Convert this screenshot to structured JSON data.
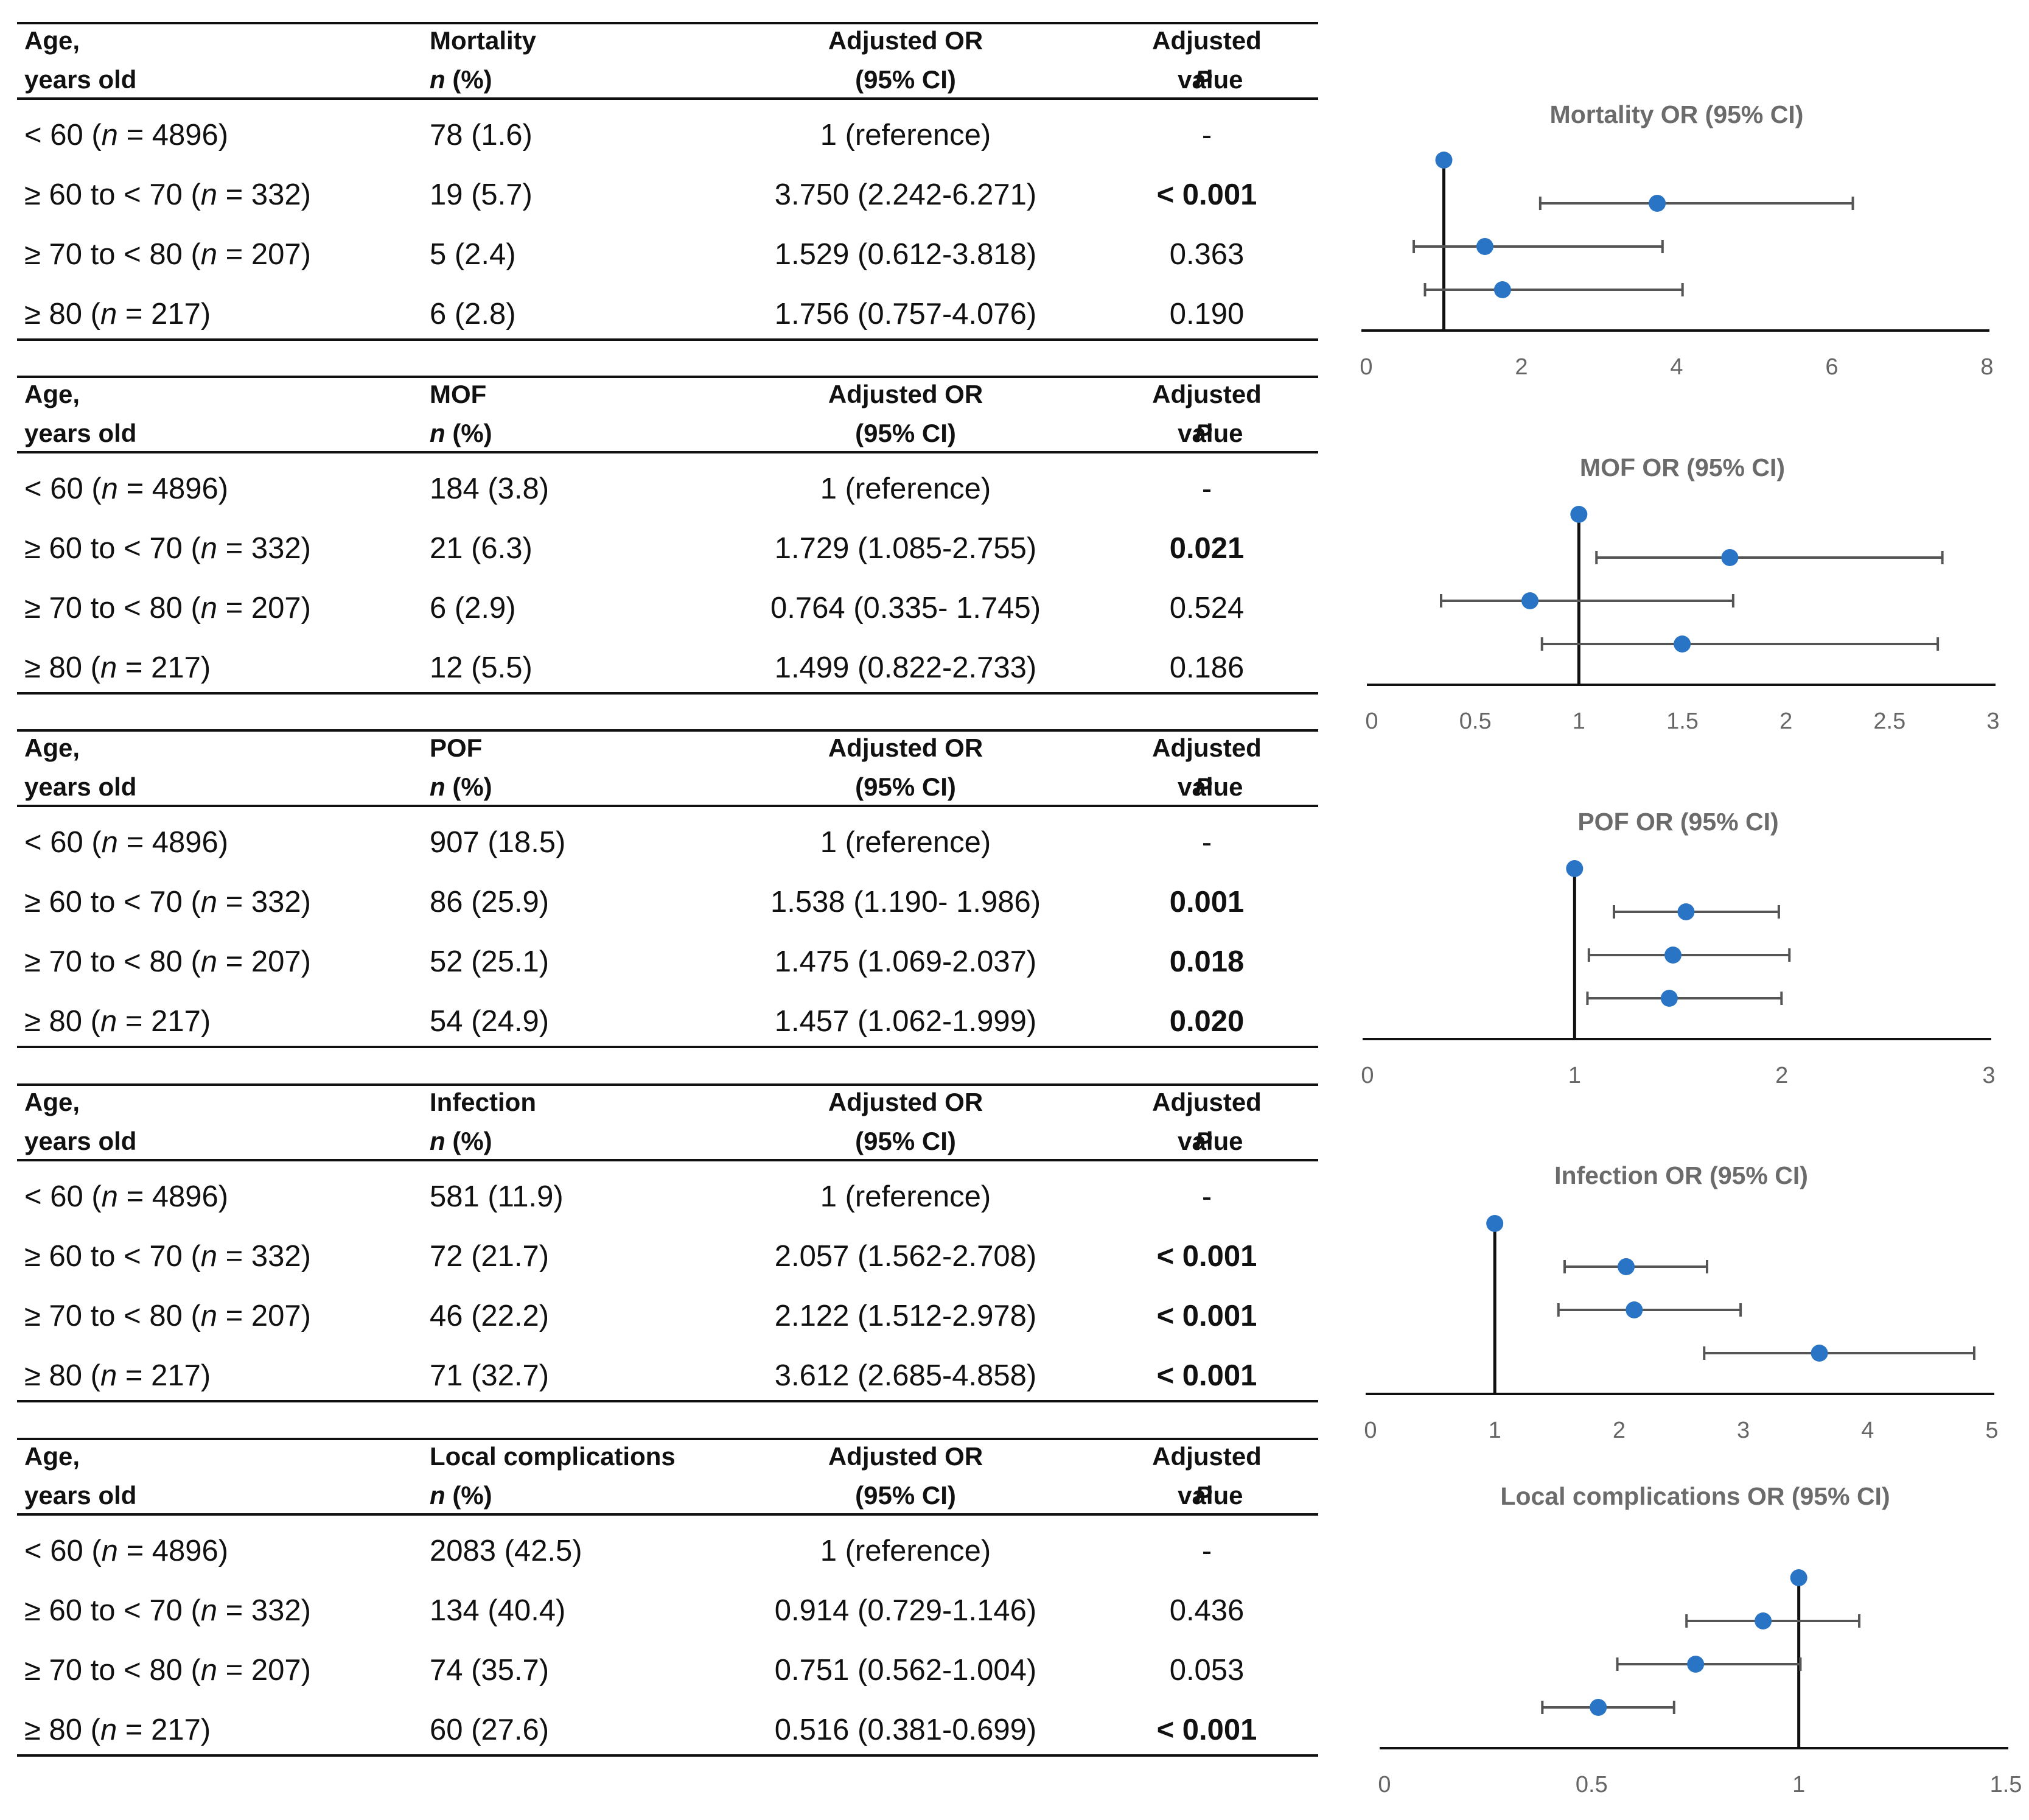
{
  "header": {
    "age_line1": "Age,",
    "age_line2": "years old",
    "n_pct_line": "(%)",
    "n_symbol": "n",
    "or_line1": "Adjusted OR",
    "or_line2": "(95% CI)",
    "p_line1": "Adjusted",
    "p_symbol": "P",
    "p_line2": "value"
  },
  "panels": [
    {
      "outcome": "Mortality",
      "rows": [
        {
          "age": "< 60 (",
          "n": "= 4896)",
          "count": "78 (1.6)",
          "or": "1 (reference)",
          "p": "-",
          "sig": false
        },
        {
          "age": "≥ 60 to < 70 (",
          "n": "= 332)",
          "count": "19 (5.7)",
          "or": "3.750 (2.242-6.271)",
          "p": "< 0.001",
          "sig": true
        },
        {
          "age": "≥ 70 to < 80 (",
          "n": "= 207)",
          "count": "5 (2.4)",
          "or": "1.529 (0.612-3.818)",
          "p": "0.363",
          "sig": false
        },
        {
          "age": "≥ 80 (",
          "n": "= 217)",
          "count": "6 (2.8)",
          "or": "1.756 (0.757-4.076)",
          "p": "0.190",
          "sig": false
        }
      ]
    },
    {
      "outcome": "MOF",
      "rows": [
        {
          "age": "< 60 (",
          "n": "= 4896)",
          "count": "184 (3.8)",
          "or": "1 (reference)",
          "p": "-",
          "sig": false
        },
        {
          "age": "≥ 60 to < 70 (",
          "n": "= 332)",
          "count": "21 (6.3)",
          "or": "1.729 (1.085-2.755)",
          "p": "0.021",
          "sig": true
        },
        {
          "age": "≥ 70 to < 80 (",
          "n": "= 207)",
          "count": "6 (2.9)",
          "or": "0.764 (0.335- 1.745)",
          "p": "0.524",
          "sig": false
        },
        {
          "age": "≥ 80 (",
          "n": "= 217)",
          "count": "12 (5.5)",
          "or": "1.499 (0.822-2.733)",
          "p": "0.186",
          "sig": false
        }
      ]
    },
    {
      "outcome": "POF",
      "rows": [
        {
          "age": "< 60 (",
          "n": "= 4896)",
          "count": "907 (18.5)",
          "or": "1 (reference)",
          "p": "-",
          "sig": false
        },
        {
          "age": "≥ 60 to < 70 (",
          "n": "= 332)",
          "count": "86 (25.9)",
          "or": "1.538 (1.190- 1.986)",
          "p": "0.001",
          "sig": true
        },
        {
          "age": "≥ 70 to < 80 (",
          "n": "= 207)",
          "count": "52 (25.1)",
          "or": "1.475 (1.069-2.037)",
          "p": "0.018",
          "sig": true
        },
        {
          "age": "≥ 80 (",
          "n": "= 217)",
          "count": "54 (24.9)",
          "or": "1.457 (1.062-1.999)",
          "p": "0.020",
          "sig": true
        }
      ]
    },
    {
      "outcome": "Infection",
      "rows": [
        {
          "age": "< 60 (",
          "n": "= 4896)",
          "count": "581 (11.9)",
          "or": "1 (reference)",
          "p": "-",
          "sig": false
        },
        {
          "age": "≥ 60 to < 70 (",
          "n": "= 332)",
          "count": "72 (21.7)",
          "or": "2.057 (1.562-2.708)",
          "p": "< 0.001",
          "sig": true
        },
        {
          "age": "≥ 70 to < 80 (",
          "n": "= 207)",
          "count": "46 (22.2)",
          "or": "2.122 (1.512-2.978)",
          "p": "< 0.001",
          "sig": true
        },
        {
          "age": "≥ 80 (",
          "n": "= 217)",
          "count": "71 (32.7)",
          "or": "3.612 (2.685-4.858)",
          "p": "< 0.001",
          "sig": true
        }
      ]
    },
    {
      "outcome": "Local complications",
      "rows": [
        {
          "age": "< 60 (",
          "n": "= 4896)",
          "count": "2083 (42.5)",
          "or": "1 (reference)",
          "p": "-",
          "sig": false
        },
        {
          "age": "≥ 60 to < 70 (",
          "n": "= 332)",
          "count": "134 (40.4)",
          "or": "0.914 (0.729-1.146)",
          "p": "0.436",
          "sig": false
        },
        {
          "age": "≥ 70 to < 80 (",
          "n": "= 207)",
          "count": "74 (35.7)",
          "or": "0.751 (0.562-1.004)",
          "p": "0.053",
          "sig": false
        },
        {
          "age": "≥ 80 (",
          "n": "= 217)",
          "count": "60 (27.6)",
          "or": "0.516 (0.381-0.699)",
          "p": "< 0.001",
          "sig": true
        }
      ]
    }
  ],
  "colors": {
    "point": "#2a74c5",
    "whisker": "#555555",
    "axis": "#111111",
    "title": "#6b6b6b",
    "tick": "#666666"
  },
  "chart_data": [
    {
      "type": "scatter",
      "title": "Mortality OR (95% CI)",
      "xlim": [
        0,
        8
      ],
      "xticks": [
        "0",
        "2",
        "4",
        "6",
        "8"
      ],
      "ref_line": 1,
      "points": [
        {
          "or": 1,
          "lo": 1,
          "hi": 1
        },
        {
          "or": 3.75,
          "lo": 2.242,
          "hi": 6.271
        },
        {
          "or": 1.529,
          "lo": 0.612,
          "hi": 3.818
        },
        {
          "or": 1.756,
          "lo": 0.757,
          "hi": 4.076
        }
      ]
    },
    {
      "type": "scatter",
      "title": "MOF OR (95% CI)",
      "xlim": [
        0,
        3
      ],
      "xticks": [
        "0",
        "0.5",
        "1",
        "1.5",
        "2",
        "2.5",
        "3"
      ],
      "ref_line": 1,
      "points": [
        {
          "or": 1,
          "lo": 1,
          "hi": 1
        },
        {
          "or": 1.729,
          "lo": 1.085,
          "hi": 2.755
        },
        {
          "or": 0.764,
          "lo": 0.335,
          "hi": 1.745
        },
        {
          "or": 1.499,
          "lo": 0.822,
          "hi": 2.733
        }
      ]
    },
    {
      "type": "scatter",
      "title": "POF OR (95% CI)",
      "xlim": [
        0,
        3
      ],
      "xticks": [
        "0",
        "1",
        "2",
        "3"
      ],
      "ref_line": 1,
      "points": [
        {
          "or": 1,
          "lo": 1,
          "hi": 1
        },
        {
          "or": 1.538,
          "lo": 1.19,
          "hi": 1.986
        },
        {
          "or": 1.475,
          "lo": 1.069,
          "hi": 2.037
        },
        {
          "or": 1.457,
          "lo": 1.062,
          "hi": 1.999
        }
      ]
    },
    {
      "type": "scatter",
      "title": "Infection OR (95% CI)",
      "xlim": [
        0,
        5
      ],
      "xticks": [
        "0",
        "1",
        "2",
        "3",
        "4",
        "5"
      ],
      "ref_line": 1,
      "points": [
        {
          "or": 1,
          "lo": 1,
          "hi": 1
        },
        {
          "or": 2.057,
          "lo": 1.562,
          "hi": 2.708
        },
        {
          "or": 2.122,
          "lo": 1.512,
          "hi": 2.978
        },
        {
          "or": 3.612,
          "lo": 2.685,
          "hi": 4.858
        }
      ]
    },
    {
      "type": "scatter",
      "title": "Local complications OR (95% CI)",
      "xlim": [
        0,
        1.5
      ],
      "xticks": [
        "0",
        "0.5",
        "1",
        "1.5"
      ],
      "ref_line": 1,
      "points": [
        {
          "or": 1,
          "lo": 1,
          "hi": 1
        },
        {
          "or": 0.914,
          "lo": 0.729,
          "hi": 1.146
        },
        {
          "or": 0.751,
          "lo": 0.562,
          "hi": 1.004
        },
        {
          "or": 0.516,
          "lo": 0.381,
          "hi": 0.699
        }
      ]
    }
  ]
}
